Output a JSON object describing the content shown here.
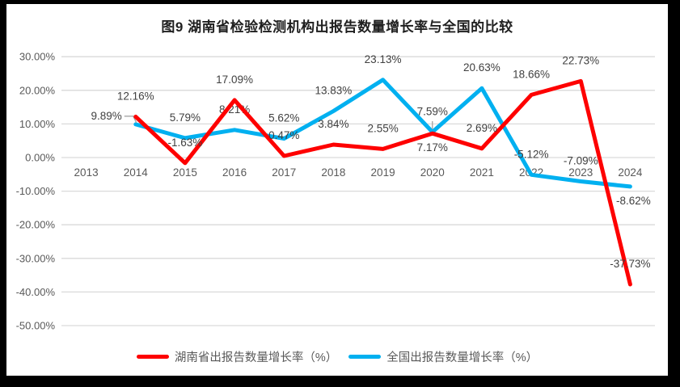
{
  "chart_data": {
    "type": "line",
    "title": "图9 湖南省检验检测机构出报告数量增长率与全国的比较",
    "categories": [
      "2013",
      "2014",
      "2015",
      "2016",
      "2017",
      "2018",
      "2019",
      "2020",
      "2021",
      "2022",
      "2023",
      "2024"
    ],
    "series": [
      {
        "name": "湖南省出报告数量增长率（%）",
        "color": "#fe0000",
        "values": [
          null,
          12.16,
          -1.63,
          17.09,
          0.47,
          3.84,
          2.55,
          7.17,
          2.69,
          18.66,
          22.73,
          -37.73
        ],
        "labels": [
          null,
          "12.16%",
          "-1.63%",
          "17.09%",
          "0.47%",
          "3.84%",
          "2.55%",
          "7.17%",
          "2.69%",
          "18.66%",
          "22.73%",
          "-37.73%"
        ]
      },
      {
        "name": "全国出报告数量增长率（%）",
        "color": "#00b0f0",
        "values": [
          null,
          9.89,
          5.79,
          8.21,
          5.62,
          13.83,
          23.13,
          7.59,
          20.63,
          -5.12,
          -7.09,
          -8.62
        ],
        "labels": [
          null,
          "9.89%",
          "5.79%",
          "8.21%",
          "5.62%",
          "13.83%",
          "23.13%",
          "7.59%",
          "20.63%",
          "-5.12%",
          "-7.09%",
          "-8.62%"
        ]
      }
    ],
    "y_axis": {
      "ticks": [
        {
          "value": 30,
          "label": "30.00%"
        },
        {
          "value": 20,
          "label": "20.00%"
        },
        {
          "value": 10,
          "label": "10.00%"
        },
        {
          "value": 0,
          "label": "0.00%"
        },
        {
          "value": -10,
          "label": "-10.00%"
        },
        {
          "value": -20,
          "label": "-20.00%"
        },
        {
          "value": -30,
          "label": "-30.00%"
        },
        {
          "value": -40,
          "label": "-40.00%"
        },
        {
          "value": -50,
          "label": "-50.00%"
        }
      ]
    },
    "ylim": [
      -50,
      30
    ],
    "grid": true,
    "legend_position": "bottom",
    "colors": {
      "gridline": "#d9d9d9",
      "axis_text": "#595959",
      "data_label_text": "#404040",
      "leader_line": "#a6a6a6",
      "frame": "#000000",
      "plot_background": "#ffffff"
    }
  }
}
